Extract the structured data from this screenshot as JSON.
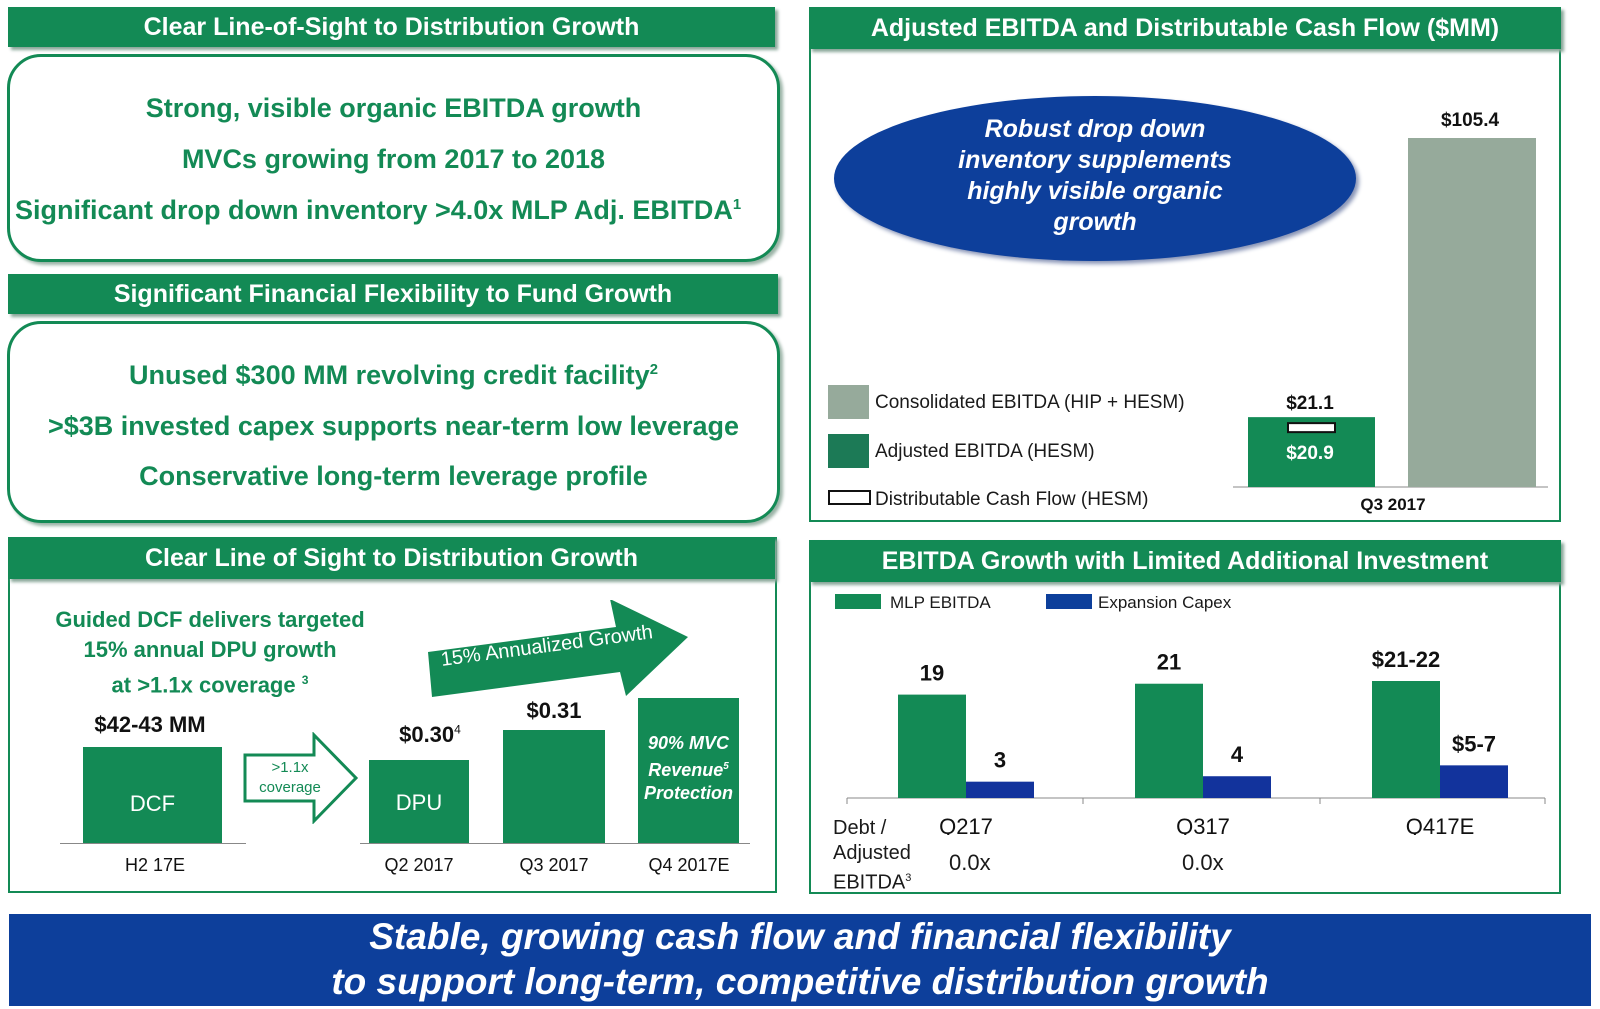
{
  "left_top": {
    "header": "Clear Line-of-Sight to Distribution Growth",
    "line1": "Strong, visible organic EBITDA growth",
    "line2": "MVCs growing from 2017 to 2018",
    "line3": "Significant drop down inventory >4.0x MLP Adj. EBITDA",
    "line3_sup": "1"
  },
  "left_mid": {
    "header": "Significant Financial Flexibility to Fund Growth",
    "line1": "Unused $300 MM revolving credit facility",
    "line1_sup": "2",
    "line2": ">$3B invested capex supports near-term low leverage",
    "line3": "Conservative long-term leverage profile"
  },
  "left_bottom": {
    "header": "Clear Line of Sight to Distribution Growth",
    "guided_line1": "Guided DCF delivers targeted",
    "guided_line2": "15% annual DPU growth",
    "guided_line3": "at >1.1x coverage",
    "guided_sup": "3",
    "dcf_value": "$42-43 MM",
    "dcf_label": "DCF",
    "dcf_x": "H2 17E",
    "coverage_line1": ">1.1x",
    "coverage_line2": "coverage",
    "arrow_text": "15% Annualized Growth",
    "dpu_q2_value": "$0.30",
    "dpu_q2_sup": "4",
    "dpu_label": "DPU",
    "dpu_q3_value": "$0.31",
    "mvc_line1": "90% MVC",
    "mvc_line2": "Revenue",
    "mvc_sup": "5",
    "mvc_line3": "Protection",
    "x_q2": "Q2 2017",
    "x_q3": "Q3 2017",
    "x_q4": "Q4 2017E"
  },
  "right_top": {
    "header": "Adjusted EBITDA and Distributable Cash Flow ($MM)",
    "ellipse_line1": "Robust drop down",
    "ellipse_line2": "inventory supplements",
    "ellipse_line3": "highly visible organic",
    "ellipse_line4": "growth",
    "legend1": "Consolidated EBITDA (HIP + HESM)",
    "legend2": "Adjusted EBITDA (HESM)",
    "legend3": "Distributable Cash Flow (HESM)",
    "adj_label": "$21.1",
    "dcf_label": "$20.9",
    "cons_label": "$105.4",
    "x_label": "Q3 2017"
  },
  "right_bottom": {
    "header": "EBITDA Growth with Limited Additional Investment",
    "legend1": "MLP EBITDA",
    "legend2": "Expansion Capex",
    "row_label1": "Debt /",
    "row_label2": "Adjusted",
    "row_label3": "EBITDA",
    "row_sup": "3",
    "lev_q217": "0.0x",
    "lev_q317": "0.0x"
  },
  "banner": {
    "line1": "Stable, growing cash flow and financial flexibility",
    "line2": "to support long-term, competitive distribution growth"
  },
  "colors": {
    "green": "#138a55",
    "gray_green": "#96aa9b",
    "navy": "#0d3f9b",
    "dark_navy": "#12339c"
  },
  "chart_data": [
    {
      "type": "bar",
      "categories": [
        "Q3 2017"
      ],
      "series": [
        {
          "name": "Adjusted EBITDA (HESM)",
          "values": [
            21.1
          ]
        },
        {
          "name": "Distributable Cash Flow (HESM)",
          "values": [
            20.9
          ]
        },
        {
          "name": "Consolidated EBITDA (HIP + HESM)",
          "values": [
            105.4
          ]
        }
      ],
      "value_labels": [
        "$21.1",
        "$20.9",
        "$105.4"
      ],
      "title": "Adjusted EBITDA and Distributable Cash Flow ($MM)",
      "ylim": [
        0,
        110
      ]
    },
    {
      "type": "bar",
      "categories": [
        "Q217",
        "Q317",
        "Q417E"
      ],
      "series": [
        {
          "name": "MLP EBITDA",
          "values": [
            19,
            21,
            21.5
          ],
          "labels": [
            "19",
            "21",
            "$21-22"
          ]
        },
        {
          "name": "Expansion Capex",
          "values": [
            3,
            4,
            6
          ],
          "labels": [
            "3",
            "4",
            "$5-7"
          ]
        }
      ],
      "title": "EBITDA Growth with Limited Additional Investment",
      "ylim": [
        0,
        24
      ]
    },
    {
      "type": "bar",
      "categories": [
        "H2 17E",
        "Q2 2017",
        "Q3 2017",
        "Q4 2017E"
      ],
      "values": [
        42.5,
        0.3,
        0.31,
        null
      ],
      "value_labels": [
        "$42-43 MM",
        "$0.30",
        "$0.31",
        "90% MVC Revenue Protection"
      ],
      "title": "Clear Line of Sight to Distribution Growth"
    }
  ]
}
